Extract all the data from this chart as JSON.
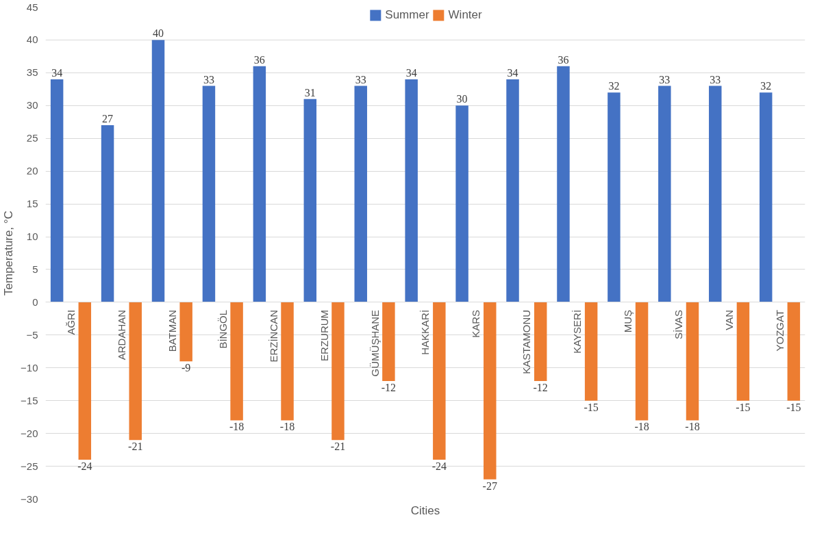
{
  "chart_data": {
    "type": "bar",
    "xlabel": "Cities",
    "ylabel": "Temperature, °C",
    "categories": [
      "AĞRI",
      "ARDAHAN",
      "BATMAN",
      "BİNGÖL",
      "ERZİNCAN",
      "ERZURUM",
      "GÜMÜŞHANE",
      "HAKKARİ",
      "KARS",
      "KASTAMONU",
      "KAYSERİ",
      "MUŞ",
      "SİVAS",
      "VAN",
      "YOZGAT"
    ],
    "series": [
      {
        "name": "Summer",
        "color": "#4472c4",
        "values": [
          34,
          27,
          40,
          33,
          36,
          31,
          33,
          34,
          30,
          34,
          36,
          32,
          33,
          33,
          32
        ]
      },
      {
        "name": "Winter",
        "color": "#ed7d31",
        "values": [
          -24,
          -21,
          -9,
          -18,
          -18,
          -21,
          -12,
          -24,
          -27,
          -12,
          -15,
          -18,
          -18,
          -15,
          -15
        ]
      }
    ],
    "ylim": [
      -30,
      45
    ],
    "yticks": [
      -30,
      -25,
      -20,
      -15,
      -10,
      -5,
      0,
      5,
      10,
      15,
      20,
      25,
      30,
      35,
      40,
      45
    ],
    "grid": "y",
    "legend": "top",
    "data_labels": true
  }
}
